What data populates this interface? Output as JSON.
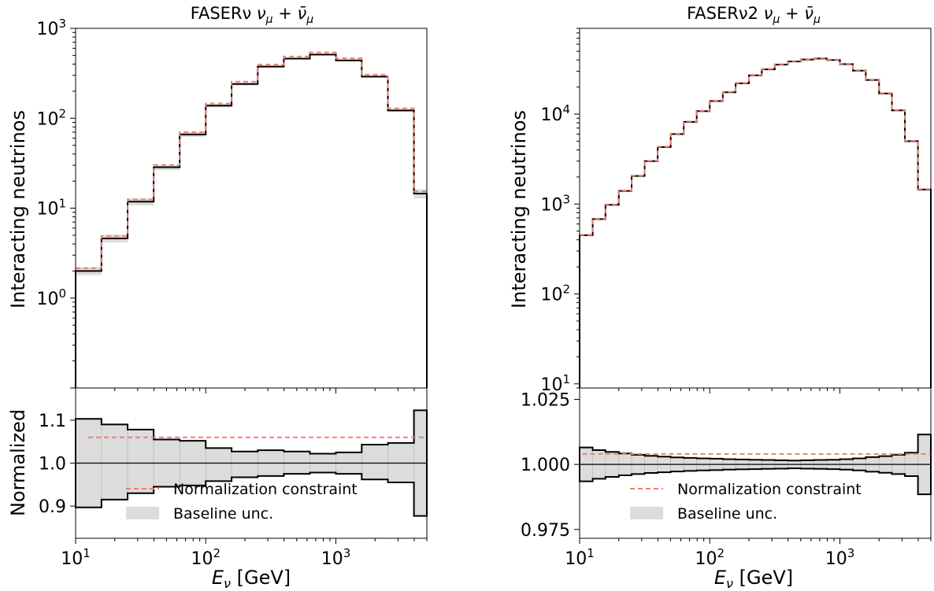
{
  "figure": {
    "xlabel_main": "E",
    "xlabel_sub": "ν",
    "xlabel_unit": " [GeV]",
    "colors": {
      "nominal": "#000000",
      "constraint": "#f07f72",
      "band": "#dcdcdc"
    }
  },
  "chart_data": [
    {
      "type": "line",
      "panel": "upper",
      "title": "FASERν ν_μ + ν̄_μ",
      "title_parts": {
        "left": "FASERν ",
        "nu": "ν",
        "mu": "μ",
        "plus": " + ",
        "nubar": "ν̄"
      },
      "ylabel": "Interacting neutrinos",
      "xscale": "log",
      "yscale": "log",
      "xlim": [
        10,
        5000
      ],
      "ylim": [
        0.1,
        1000
      ],
      "yticklabels": [
        {
          "base": "10",
          "exp": "0"
        },
        {
          "base": "10",
          "exp": "1"
        },
        {
          "base": "10",
          "exp": "2"
        },
        {
          "base": "10",
          "exp": "3"
        }
      ],
      "bin_edges": [
        10,
        15.8,
        25.1,
        39.8,
        63.1,
        100,
        158,
        251,
        398,
        631,
        1000,
        1580,
        2510,
        3980,
        5000
      ],
      "series": [
        {
          "name": "nominal",
          "style": "solid step",
          "values": [
            2.0,
            4.6,
            11.8,
            28.5,
            66,
            138,
            240,
            375,
            460,
            510,
            440,
            290,
            122,
            14.5
          ]
        },
        {
          "name": "Normalization constraint",
          "style": "dashed step",
          "values": [
            2.15,
            4.9,
            12.5,
            30.2,
            70,
            146,
            255,
            395,
            485,
            540,
            465,
            305,
            129,
            15.3
          ]
        }
      ],
      "band": {
        "name": "Baseline unc.",
        "lower": [
          1.8,
          4.15,
          10.7,
          26.4,
          62,
          132,
          232,
          365,
          450,
          500,
          430,
          283,
          118,
          12.8
        ],
        "upper": [
          2.2,
          5.05,
          12.9,
          30.1,
          69.5,
          144,
          248,
          385,
          470,
          520,
          450,
          297,
          126,
          16.2
        ]
      }
    },
    {
      "type": "line",
      "panel": "lower",
      "ylabel": "Normalized",
      "xscale": "log",
      "xlim": [
        10,
        5000
      ],
      "ylim": [
        0.825,
        1.175
      ],
      "yticks": [
        0.9,
        1.0,
        1.1
      ],
      "yticklabels": [
        "0.9",
        "1.0",
        "1.1"
      ],
      "bin_edges": [
        10,
        15.8,
        25.1,
        39.8,
        63.1,
        100,
        158,
        251,
        398,
        631,
        1000,
        1580,
        2510,
        3980,
        5000
      ],
      "band": {
        "name": "Baseline unc.",
        "lower": [
          0.897,
          0.915,
          0.93,
          0.945,
          0.948,
          0.958,
          0.967,
          0.97,
          0.975,
          0.978,
          0.975,
          0.962,
          0.955,
          0.877
        ],
        "upper": [
          1.103,
          1.09,
          1.078,
          1.055,
          1.052,
          1.035,
          1.027,
          1.03,
          1.027,
          1.022,
          1.025,
          1.043,
          1.047,
          1.123
        ]
      },
      "constraint": {
        "name": "Normalization constraint",
        "value": 1.06,
        "x_from": 12.5
      },
      "reference": 1.0,
      "legend": {
        "placement": "lower center",
        "entries": [
          "Normalization constraint",
          "Baseline unc."
        ]
      },
      "xticklabels": [
        {
          "base": "10",
          "exp": "1"
        },
        {
          "base": "10",
          "exp": "2"
        },
        {
          "base": "10",
          "exp": "3"
        }
      ]
    },
    {
      "type": "line",
      "panel": "upper",
      "title": "FASERν2 ν_μ + ν̄_μ",
      "title_parts": {
        "left": "FASERν2 ",
        "nu": "ν",
        "mu": "μ",
        "plus": " + ",
        "nubar": "ν̄"
      },
      "ylabel": "Interacting neutrinos",
      "xscale": "log",
      "yscale": "log",
      "xlim": [
        10,
        5000
      ],
      "ylim": [
        9,
        90000
      ],
      "yticklabels": [
        {
          "base": "10",
          "exp": "1"
        },
        {
          "base": "10",
          "exp": "2"
        },
        {
          "base": "10",
          "exp": "3"
        },
        {
          "base": "10",
          "exp": "4"
        }
      ],
      "bin_edges": [
        10,
        12.6,
        15.8,
        20,
        25.1,
        31.6,
        39.8,
        50.1,
        63.1,
        79.4,
        100,
        126,
        158,
        200,
        251,
        316,
        398,
        501,
        631,
        794,
        1000,
        1260,
        1580,
        2000,
        2510,
        3160,
        3980,
        5000
      ],
      "series": [
        {
          "name": "nominal",
          "style": "solid step",
          "values": [
            450,
            680,
            980,
            1400,
            2050,
            3000,
            4300,
            6000,
            8200,
            10800,
            14000,
            17500,
            22000,
            27000,
            31500,
            35500,
            38500,
            40500,
            41500,
            40000,
            36000,
            30500,
            24000,
            17000,
            11000,
            5000,
            1450
          ]
        },
        {
          "name": "Normalization constraint",
          "style": "dashed step",
          "values": [
            455,
            687,
            990,
            1414,
            2070,
            3030,
            4343,
            6060,
            8280,
            10900,
            14140,
            17670,
            22220,
            27270,
            31810,
            35850,
            38880,
            40900,
            41910,
            40400,
            36360,
            30800,
            24240,
            17170,
            11110,
            5050,
            1465
          ]
        }
      ],
      "band": {
        "name": "Baseline unc.",
        "lower": [
          440,
          667,
          962,
          1376,
          2017,
          2954,
          4237,
          5916,
          8093,
          10660,
          13830,
          17290,
          21740,
          26700,
          31150,
          35120,
          38080,
          40050,
          41010,
          39520,
          35560,
          30100,
          23690,
          16770,
          10830,
          4900,
          1410
        ],
        "upper": [
          460,
          693,
          998,
          1424,
          2083,
          3046,
          4363,
          6084,
          8307,
          10940,
          14170,
          17710,
          22260,
          27300,
          31850,
          35880,
          38920,
          40950,
          41990,
          40480,
          36440,
          30900,
          24310,
          17230,
          11170,
          5100,
          1490
        ]
      }
    },
    {
      "type": "line",
      "panel": "lower",
      "ylabel": "",
      "xscale": "log",
      "xlim": [
        10,
        5000
      ],
      "ylim": [
        0.9716,
        1.0294
      ],
      "yticks": [
        0.975,
        1.0,
        1.025
      ],
      "yticklabels": [
        "0.975",
        "1.000",
        "1.025"
      ],
      "bin_edges": [
        10,
        12.6,
        15.8,
        20,
        25.1,
        31.6,
        39.8,
        50.1,
        63.1,
        79.4,
        100,
        126,
        158,
        200,
        251,
        316,
        398,
        501,
        631,
        794,
        1000,
        1260,
        1580,
        2000,
        2510,
        3160,
        3980,
        5000
      ],
      "band": {
        "name": "Baseline unc.",
        "lower": [
          0.9935,
          0.9945,
          0.9952,
          0.9958,
          0.9963,
          0.9967,
          0.997,
          0.9973,
          0.9975,
          0.9977,
          0.9978,
          0.998,
          0.9981,
          0.9982,
          0.9983,
          0.9984,
          0.9985,
          0.9984,
          0.9983,
          0.9982,
          0.998,
          0.9977,
          0.9972,
          0.9968,
          0.9963,
          0.9955,
          0.9885
        ],
        "upper": [
          1.0065,
          1.0055,
          1.0048,
          1.0042,
          1.0037,
          1.0033,
          1.003,
          1.0027,
          1.0025,
          1.0023,
          1.0022,
          1.002,
          1.0019,
          1.0018,
          1.0017,
          1.0016,
          1.0015,
          1.0016,
          1.0017,
          1.0018,
          1.002,
          1.0023,
          1.0028,
          1.0032,
          1.0037,
          1.0045,
          1.0115
        ]
      },
      "constraint": {
        "name": "Normalization constraint",
        "value": 1.004,
        "x_from": 10.5
      },
      "reference": 1.0,
      "legend": {
        "placement": "lower center",
        "entries": [
          "Normalization constraint",
          "Baseline unc."
        ]
      },
      "xticklabels": [
        {
          "base": "10",
          "exp": "1"
        },
        {
          "base": "10",
          "exp": "2"
        },
        {
          "base": "10",
          "exp": "3"
        }
      ]
    }
  ]
}
